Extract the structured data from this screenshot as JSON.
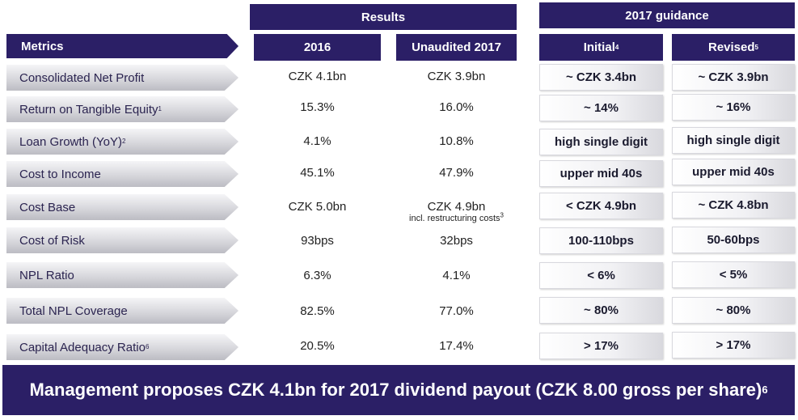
{
  "headers": {
    "results": "Results",
    "guidance": "2017 guidance",
    "metrics": "Metrics",
    "col_2016": "2016",
    "col_2017": "Unaudited 2017",
    "col_initial": "Initial",
    "col_initial_sup": "4",
    "col_revised": "Revised",
    "col_revised_sup": "5"
  },
  "rows": [
    {
      "metric": "Consolidated Net Profit",
      "sup": "",
      "v2016": "CZK 4.1bn",
      "v2017": "CZK 3.9bn",
      "note": "",
      "initial": "~ CZK 3.4bn",
      "revised": "~ CZK 3.9bn"
    },
    {
      "metric": "Return on Tangible Equity",
      "sup": "1",
      "v2016": "15.3%",
      "v2017": "16.0%",
      "note": "",
      "initial": "~ 14%",
      "revised": "~ 16%"
    },
    {
      "metric": "Loan Growth (YoY)",
      "sup": "2",
      "v2016": "4.1%",
      "v2017": "10.8%",
      "note": "",
      "initial": "high single digit",
      "revised": "high single digit"
    },
    {
      "metric": "Cost to Income",
      "sup": "",
      "v2016": "45.1%",
      "v2017": "47.9%",
      "note": "",
      "initial": "upper mid 40s",
      "revised": "upper mid 40s"
    },
    {
      "metric": "Cost Base",
      "sup": "",
      "v2016": "CZK 5.0bn",
      "v2017": "CZK 4.9bn",
      "note": "incl. restructuring costs",
      "note_sup": "3",
      "initial": "< CZK 4.9bn",
      "revised": "~ CZK 4.8bn"
    },
    {
      "metric": "Cost of Risk",
      "sup": "",
      "v2016": "93bps",
      "v2017": "32bps",
      "note": "",
      "initial": "100-110bps",
      "revised": "50-60bps"
    },
    {
      "metric": "NPL Ratio",
      "sup": "",
      "v2016": "6.3%",
      "v2017": "4.1%",
      "note": "",
      "initial": "< 6%",
      "revised": "< 5%"
    },
    {
      "metric": "Total NPL Coverage",
      "sup": "",
      "v2016": "82.5%",
      "v2017": "77.0%",
      "note": "",
      "initial": "~ 80%",
      "revised": "~ 80%"
    },
    {
      "metric": "Capital Adequacy Ratio",
      "sup": "6",
      "v2016": "20.5%",
      "v2017": "17.4%",
      "note": "",
      "initial": "> 17%",
      "revised": "> 17%"
    }
  ],
  "footer": {
    "text": "Management proposes CZK 4.1bn for 2017 dividend payout (CZK 8.00 gross per share)",
    "sup": "6"
  },
  "colors": {
    "navy": "#2b1f66"
  }
}
